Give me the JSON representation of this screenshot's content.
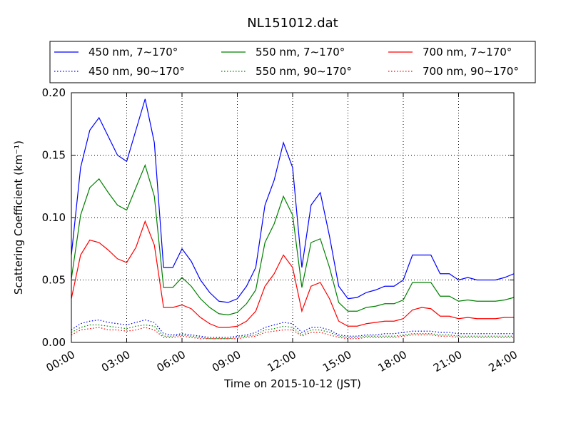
{
  "chart_data": {
    "type": "line",
    "title": "NL151012.dat",
    "xlabel": "Time on 2015-10-12 (JST)",
    "ylabel": "Scattering Coefficient (km⁻¹)",
    "x": [
      0,
      0.5,
      1,
      1.5,
      2,
      2.5,
      3,
      3.5,
      4,
      4.5,
      5,
      5.5,
      6,
      6.5,
      7,
      7.5,
      8,
      8.5,
      9,
      9.5,
      10,
      10.5,
      11,
      11.5,
      12,
      12.5,
      13,
      13.5,
      14,
      14.5,
      15,
      15.5,
      16,
      16.5,
      17,
      17.5,
      18,
      18.5,
      19,
      19.5,
      20,
      20.5,
      21,
      21.5,
      22,
      22.5,
      23,
      23.5,
      24
    ],
    "xlim": [
      0,
      24
    ],
    "xticks": [
      {
        "value": 0,
        "label": "00:00"
      },
      {
        "value": 3,
        "label": "03:00"
      },
      {
        "value": 6,
        "label": "06:00"
      },
      {
        "value": 9,
        "label": "09:00"
      },
      {
        "value": 12,
        "label": "12:00"
      },
      {
        "value": 15,
        "label": "15:00"
      },
      {
        "value": 18,
        "label": "18:00"
      },
      {
        "value": 21,
        "label": "21:00"
      },
      {
        "value": 24,
        "label": "24:00"
      }
    ],
    "ylim": [
      0,
      0.2
    ],
    "yticks": [
      {
        "value": 0,
        "label": "0.00"
      },
      {
        "value": 0.05,
        "label": "0.05"
      },
      {
        "value": 0.1,
        "label": "0.10"
      },
      {
        "value": 0.15,
        "label": "0.15"
      },
      {
        "value": 0.2,
        "label": "0.20"
      }
    ],
    "grid": true,
    "legend": "top",
    "series": [
      {
        "name": "450 nm, 7∼170°",
        "color": "#0000ff",
        "style": "solid",
        "values": [
          0.07,
          0.14,
          0.17,
          0.18,
          0.165,
          0.15,
          0.145,
          0.17,
          0.195,
          0.16,
          0.06,
          0.06,
          0.075,
          0.065,
          0.05,
          0.04,
          0.033,
          0.032,
          0.035,
          0.045,
          0.06,
          0.11,
          0.13,
          0.16,
          0.14,
          0.06,
          0.11,
          0.12,
          0.085,
          0.045,
          0.035,
          0.036,
          0.04,
          0.042,
          0.045,
          0.045,
          0.05,
          0.07,
          0.07,
          0.07,
          0.055,
          0.055,
          0.05,
          0.052,
          0.05,
          0.05,
          0.05,
          0.052,
          0.055
        ]
      },
      {
        "name": "450 nm, 90∼170°",
        "color": "#0000ff",
        "style": "dotted",
        "values": [
          0.01,
          0.015,
          0.017,
          0.018,
          0.016,
          0.015,
          0.014,
          0.016,
          0.018,
          0.016,
          0.007,
          0.006,
          0.007,
          0.006,
          0.005,
          0.004,
          0.004,
          0.004,
          0.005,
          0.006,
          0.008,
          0.012,
          0.014,
          0.016,
          0.015,
          0.008,
          0.012,
          0.012,
          0.01,
          0.006,
          0.005,
          0.005,
          0.006,
          0.006,
          0.007,
          0.007,
          0.008,
          0.009,
          0.009,
          0.009,
          0.008,
          0.008,
          0.007,
          0.007,
          0.007,
          0.007,
          0.007,
          0.007,
          0.007
        ]
      },
      {
        "name": "550 nm, 7∼170°",
        "color": "#008000",
        "style": "solid",
        "values": [
          0.051,
          0.102,
          0.124,
          0.131,
          0.12,
          0.11,
          0.106,
          0.124,
          0.142,
          0.117,
          0.044,
          0.044,
          0.052,
          0.045,
          0.035,
          0.028,
          0.023,
          0.022,
          0.024,
          0.031,
          0.042,
          0.08,
          0.095,
          0.117,
          0.102,
          0.044,
          0.08,
          0.083,
          0.06,
          0.032,
          0.025,
          0.025,
          0.028,
          0.029,
          0.031,
          0.031,
          0.034,
          0.048,
          0.048,
          0.048,
          0.037,
          0.037,
          0.033,
          0.034,
          0.033,
          0.033,
          0.033,
          0.034,
          0.036
        ]
      },
      {
        "name": "550 nm, 90∼170°",
        "color": "#008000",
        "style": "dotted",
        "values": [
          0.008,
          0.012,
          0.014,
          0.014,
          0.013,
          0.012,
          0.011,
          0.013,
          0.014,
          0.013,
          0.005,
          0.005,
          0.006,
          0.005,
          0.004,
          0.003,
          0.003,
          0.003,
          0.004,
          0.005,
          0.006,
          0.01,
          0.011,
          0.013,
          0.012,
          0.006,
          0.01,
          0.01,
          0.008,
          0.005,
          0.004,
          0.004,
          0.005,
          0.005,
          0.005,
          0.005,
          0.006,
          0.007,
          0.007,
          0.007,
          0.006,
          0.006,
          0.005,
          0.005,
          0.005,
          0.005,
          0.005,
          0.005,
          0.005
        ]
      },
      {
        "name": "700 nm, 7∼170°",
        "color": "#ff0000",
        "style": "solid",
        "values": [
          0.035,
          0.07,
          0.082,
          0.08,
          0.074,
          0.067,
          0.064,
          0.076,
          0.097,
          0.078,
          0.028,
          0.028,
          0.03,
          0.027,
          0.02,
          0.015,
          0.012,
          0.012,
          0.013,
          0.017,
          0.025,
          0.045,
          0.055,
          0.07,
          0.06,
          0.025,
          0.045,
          0.048,
          0.035,
          0.017,
          0.013,
          0.013,
          0.015,
          0.016,
          0.017,
          0.017,
          0.019,
          0.026,
          0.028,
          0.027,
          0.021,
          0.021,
          0.019,
          0.02,
          0.019,
          0.019,
          0.019,
          0.02,
          0.02
        ]
      },
      {
        "name": "700 nm, 90∼170°",
        "color": "#ff0000",
        "style": "dotted",
        "values": [
          0.006,
          0.01,
          0.011,
          0.012,
          0.01,
          0.01,
          0.009,
          0.01,
          0.012,
          0.01,
          0.004,
          0.004,
          0.005,
          0.004,
          0.003,
          0.003,
          0.003,
          0.003,
          0.003,
          0.004,
          0.005,
          0.008,
          0.009,
          0.01,
          0.01,
          0.005,
          0.008,
          0.008,
          0.006,
          0.004,
          0.003,
          0.003,
          0.004,
          0.004,
          0.004,
          0.004,
          0.005,
          0.006,
          0.006,
          0.006,
          0.005,
          0.005,
          0.004,
          0.004,
          0.004,
          0.004,
          0.004,
          0.004,
          0.004
        ]
      }
    ]
  }
}
